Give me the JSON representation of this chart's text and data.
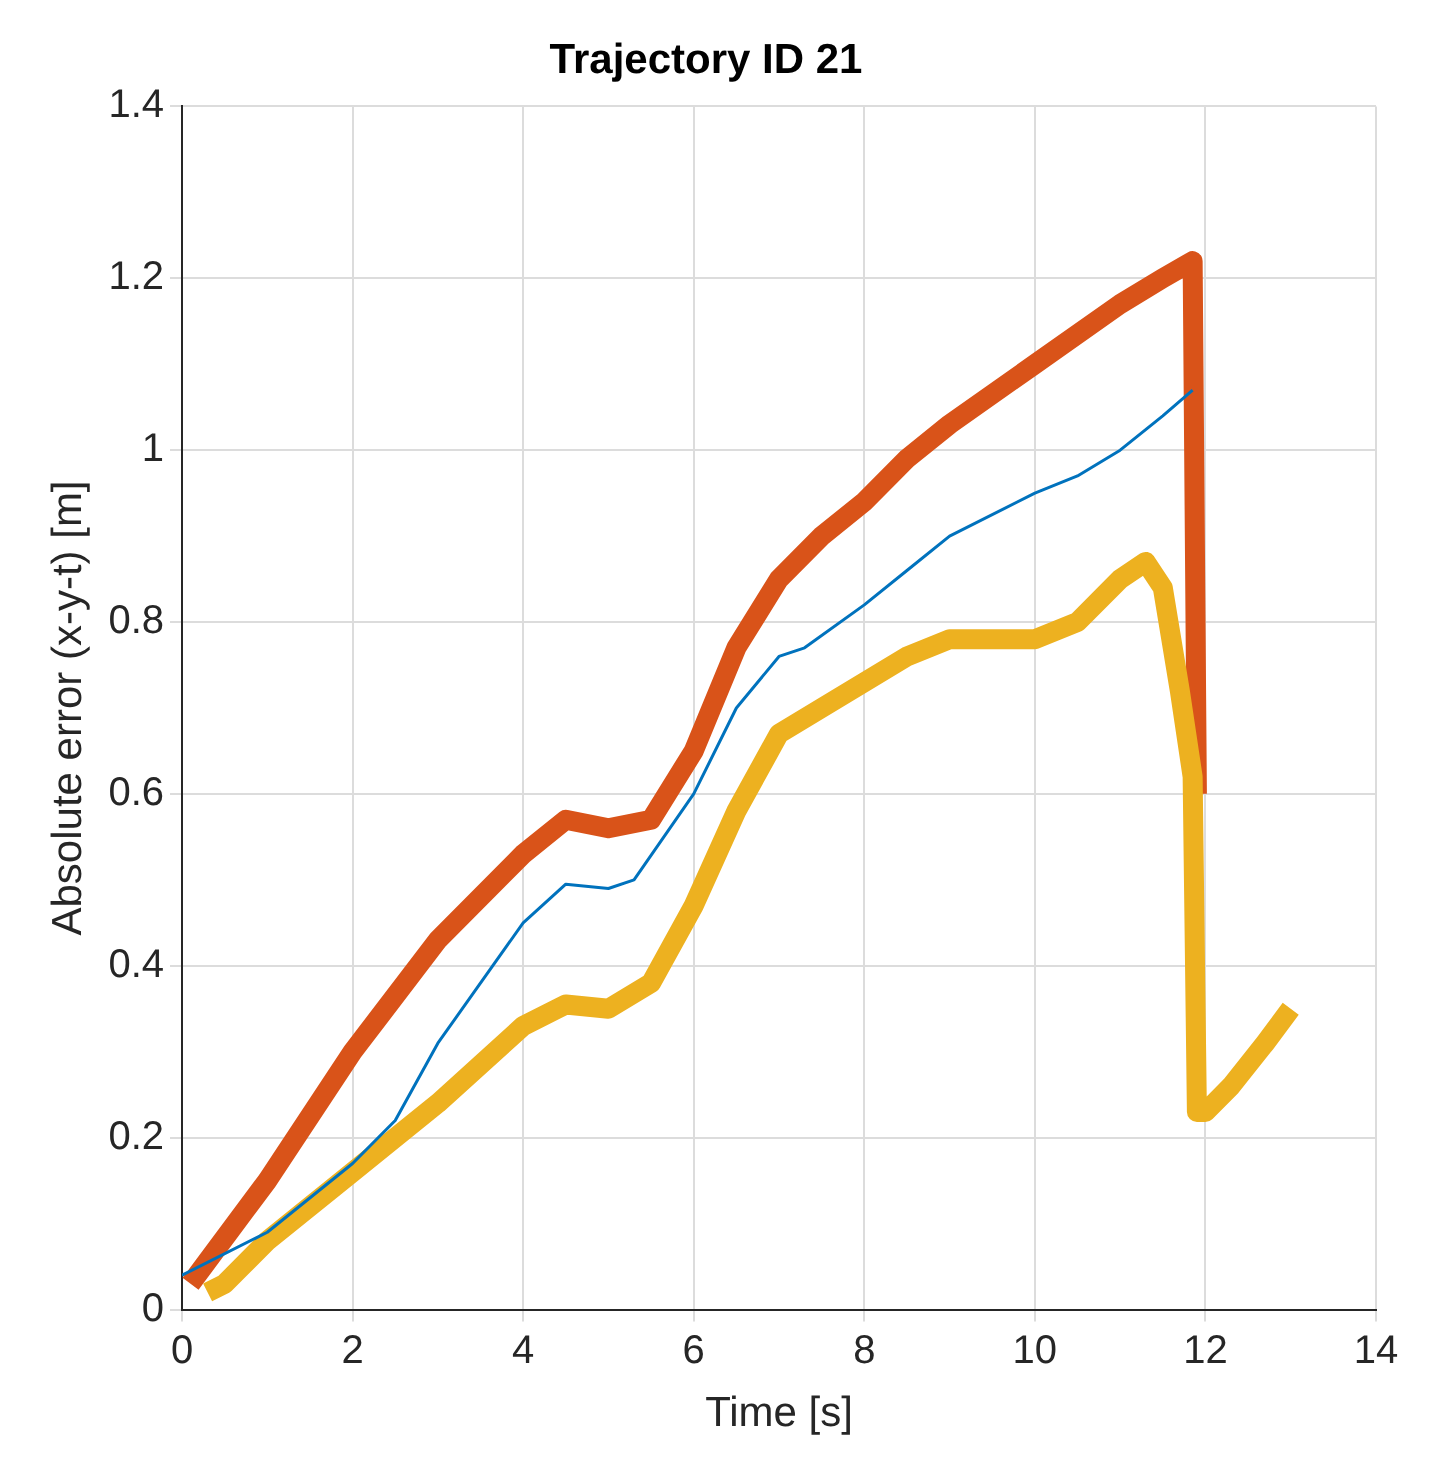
{
  "chart_data": {
    "type": "line",
    "title": "Trajectory ID 21",
    "xlabel": "Time [s]",
    "ylabel": "Absolute error (x-y-t) [m]",
    "xlim": [
      0,
      14
    ],
    "xticks": [
      0,
      2,
      4,
      6,
      8,
      10,
      12,
      14
    ],
    "ylim": [
      0,
      1.4
    ],
    "yticks": [
      0,
      0.2,
      0.4,
      0.6,
      0.8,
      1,
      1.2,
      1.4
    ],
    "grid": true,
    "legend": false,
    "marker": "none",
    "line_style": "solid",
    "series": [
      {
        "color": "#d95319",
        "x": [
          0.1,
          1,
          2,
          3,
          4,
          4.5,
          5,
          5.5,
          6,
          6.5,
          7,
          7.5,
          8,
          8.5,
          9,
          10,
          11,
          11.5,
          11.85,
          11.9
        ],
        "values": [
          0.03,
          0.15,
          0.3,
          0.43,
          0.53,
          0.57,
          0.56,
          0.57,
          0.65,
          0.77,
          0.85,
          0.9,
          0.94,
          0.99,
          1.03,
          1.1,
          1.17,
          1.2,
          1.22,
          0.6
        ]
      },
      {
        "color": "#edb120",
        "x": [
          0.3,
          0.5,
          1,
          2,
          3,
          4,
          4.5,
          5,
          5.5,
          6,
          6.5,
          7,
          7.5,
          8,
          8.5,
          9,
          10,
          10.5,
          11,
          11.3,
          11.5,
          11.7,
          11.85,
          11.9,
          12,
          12.3,
          12.7,
          13
        ],
        "values": [
          0.02,
          0.03,
          0.08,
          0.16,
          0.24,
          0.33,
          0.355,
          0.35,
          0.38,
          0.47,
          0.58,
          0.67,
          0.7,
          0.73,
          0.76,
          0.78,
          0.78,
          0.8,
          0.85,
          0.87,
          0.84,
          0.72,
          0.62,
          0.23,
          0.23,
          0.26,
          0.31,
          0.35
        ]
      },
      {
        "color": "#0072bd",
        "x": [
          0,
          1,
          2,
          2.5,
          3,
          4,
          4.5,
          5,
          5.3,
          6,
          6.5,
          7,
          7.3,
          8,
          8.5,
          9,
          10,
          10.5,
          11,
          11.5,
          11.85
        ],
        "values": [
          0.04,
          0.09,
          0.17,
          0.22,
          0.31,
          0.45,
          0.495,
          0.49,
          0.5,
          0.6,
          0.7,
          0.76,
          0.77,
          0.82,
          0.86,
          0.9,
          0.95,
          0.97,
          1.0,
          1.04,
          1.07
        ]
      }
    ]
  }
}
